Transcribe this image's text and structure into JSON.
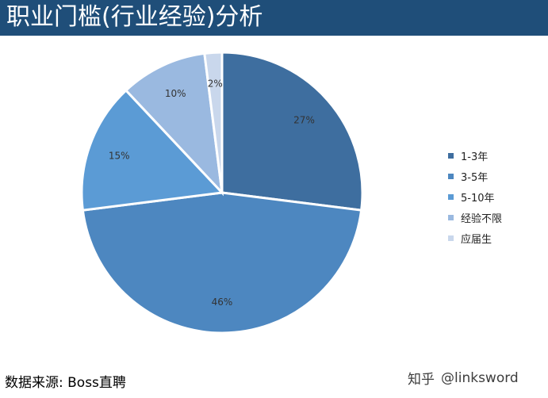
{
  "header": {
    "title": "职业门槛(行业经验)分析"
  },
  "chart_data": {
    "type": "pie",
    "title": "职业门槛(行业经验)分析",
    "categories": [
      "1-3年",
      "3-5年",
      "5-10年",
      "经验不限",
      "应届生"
    ],
    "values": [
      27,
      46,
      15,
      10,
      2
    ],
    "labels": [
      "27%",
      "46%",
      "15%",
      "10%",
      "2%"
    ],
    "colors": [
      "#3e6e9f",
      "#4d87c0",
      "#5b9bd5",
      "#9ab9e0",
      "#c9d7ec"
    ],
    "legend": "right"
  },
  "footer": {
    "source": "数据来源:  Boss直聘",
    "watermark_site": "知乎",
    "watermark_user": "@linksword"
  }
}
